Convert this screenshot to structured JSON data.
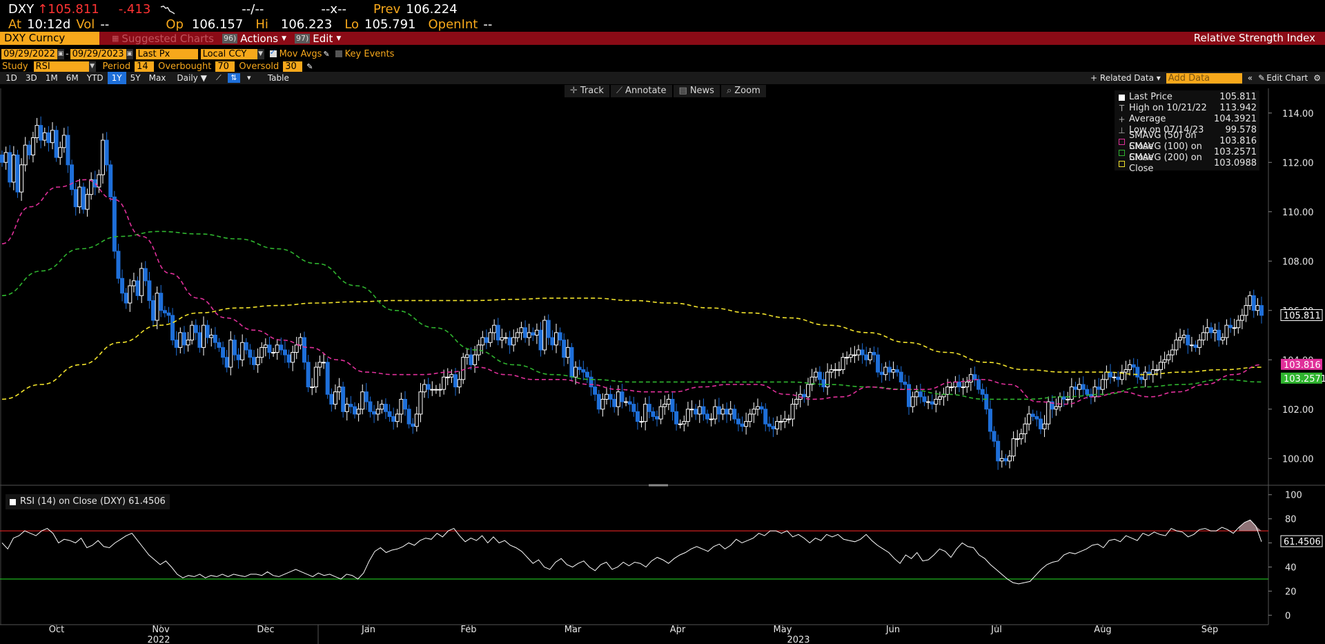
{
  "quote": {
    "ticker": "DXY",
    "arrow": "↑",
    "last": "105.811",
    "change": "-.413",
    "dash1": "--/--",
    "dash2": "--x--",
    "prev_label": "Prev",
    "prev": "106.224",
    "at_label": "At",
    "time": "10:12d",
    "vol_label": "Vol",
    "vol": "--",
    "op_label": "Op",
    "op": "106.157",
    "hi_label": "Hi",
    "hi": "106.223",
    "lo_label": "Lo",
    "lo": "105.791",
    "openint_label": "OpenInt",
    "openint": "--"
  },
  "titlebar": {
    "security": "DXY Curncy",
    "suggested": "Suggested Charts",
    "actions_num": "96)",
    "actions": "Actions",
    "edit_num": "97)",
    "edit": "Edit",
    "title": "Relative Strength Index"
  },
  "params": {
    "start_date": "09/29/2022",
    "end_date": "09/29/2023",
    "field": "Last Px",
    "currency": "Local CCY",
    "mov_avgs": "Mov Avgs",
    "key_events": "Key Events",
    "study_label": "Study",
    "study": "RSI",
    "period_label": "Period",
    "period": "14",
    "overbought_label": "Overbought",
    "overbought": "70",
    "oversold_label": "Oversold",
    "oversold": "30"
  },
  "tabs": [
    "1D",
    "3D",
    "1M",
    "6M",
    "YTD",
    "1Y",
    "5Y",
    "Max"
  ],
  "active_tab": "1Y",
  "frequency": "Daily ▼",
  "table_label": "Table",
  "right_tools": {
    "related": "+ Related Data ▾",
    "add_data": "Add Data",
    "edit_chart": "Edit Chart"
  },
  "tools": [
    {
      "icon": "✛",
      "label": "Track"
    },
    {
      "icon": "⟋",
      "label": "Annotate"
    },
    {
      "icon": "▤",
      "label": "News"
    },
    {
      "icon": "⌕",
      "label": "Zoom"
    }
  ],
  "legend": [
    {
      "marker": "box",
      "color": "#ffffff",
      "label": "Last Price",
      "value": "105.811"
    },
    {
      "marker": "T",
      "color": "#aaaaaa",
      "label": "High on 10/21/22",
      "value": "113.942"
    },
    {
      "marker": "+",
      "color": "#aaaaaa",
      "label": "Average",
      "value": "104.3921"
    },
    {
      "marker": "⊥",
      "color": "#aaaaaa",
      "label": "Low on 07/14/23",
      "value": "99.578"
    },
    {
      "marker": "dbox",
      "color": "#e0309a",
      "label": "SMAVG (50)  on Close",
      "value": "103.816"
    },
    {
      "marker": "dbox",
      "color": "#2fb52f",
      "label": "SMAVG (100)  on Close",
      "value": "103.2571"
    },
    {
      "marker": "dbox",
      "color": "#f2e32b",
      "label": "SMAVG (200)  on Close",
      "value": "103.0988"
    }
  ],
  "rsi_legend": "RSI (14)  on Close (DXY) 61.4506",
  "y_price_ticks": [
    "114.00",
    "112.00",
    "110.00",
    "108.00",
    "106.00",
    "104.00",
    "102.00",
    "100.00"
  ],
  "y_rsi_ticks": [
    "100",
    "80",
    "60",
    "40",
    "20",
    "0"
  ],
  "x_months": [
    "Oct",
    "Nov",
    "Dec",
    "Jan",
    "Feb",
    "Mar",
    "Apr",
    "May",
    "Jun",
    "Jul",
    "Aug",
    "Sep"
  ],
  "x_years": [
    "2022",
    "2023"
  ],
  "price_badges": [
    {
      "value": "105.811",
      "bg": "#ffffff",
      "fg": "#000000"
    },
    {
      "value": "103.816",
      "bg": "#e0309a",
      "fg": "#ffffff"
    },
    {
      "value": "103.2571",
      "bg": "#2fb52f",
      "fg": "#ffffff"
    }
  ],
  "rsi_badge": "61.4506",
  "colors": {
    "up": "#ffffff",
    "down": "#1e6fd9",
    "sma50": "#e0309a",
    "sma100": "#2fb52f",
    "sma200": "#f2e32b",
    "overbought_line": "#cc1f1f",
    "oversold_line": "#1fb41f",
    "accent": "#f7a81b",
    "titlebar": "#8b0b16"
  },
  "chart_data": {
    "type": "line",
    "title": "Relative Strength Index",
    "price_ylim": [
      99,
      115
    ],
    "rsi_ylim": [
      -5,
      105
    ],
    "x_range": [
      "09/29/2022",
      "09/29/2023"
    ],
    "rsi_levels": {
      "overbought": 70,
      "oversold": 30
    },
    "candle_close": [
      112.0,
      112.4,
      111.2,
      112.3,
      110.8,
      111.9,
      112.7,
      112.3,
      113.0,
      113.5,
      112.9,
      113.2,
      112.8,
      113.3,
      112.2,
      112.6,
      113.1,
      111.9,
      110.9,
      110.2,
      111.0,
      110.1,
      110.7,
      111.3,
      111.0,
      111.5,
      112.9,
      111.9,
      110.6,
      108.4,
      107.3,
      106.7,
      106.3,
      107.0,
      107.2,
      106.6,
      107.7,
      107.2,
      106.4,
      105.6,
      106.7,
      106.0,
      105.9,
      105.8,
      104.8,
      104.5,
      105.1,
      104.6,
      104.8,
      105.4,
      105.1,
      104.5,
      105.4,
      104.9,
      105.0,
      104.7,
      104.5,
      104.1,
      103.7,
      104.8,
      104.2,
      104.0,
      104.7,
      104.4,
      104.1,
      103.8,
      104.1,
      104.5,
      104.6,
      104.3,
      104.3,
      104.6,
      104.4,
      104.2,
      103.9,
      104.3,
      104.6,
      104.9,
      103.9,
      102.9,
      102.9,
      103.7,
      103.9,
      103.9,
      102.6,
      102.2,
      102.7,
      102.9,
      101.9,
      102.2,
      102.1,
      101.8,
      102.0,
      102.7,
      102.3,
      101.9,
      101.8,
      102.0,
      102.2,
      101.9,
      101.7,
      101.5,
      101.8,
      102.4,
      102.0,
      101.4,
      101.3,
      101.8,
      102.7,
      103.0,
      102.8,
      102.8,
      102.8,
      102.8,
      103.3,
      103.3,
      103.4,
      102.9,
      103.2,
      104.1,
      104.2,
      103.8,
      104.2,
      104.6,
      104.9,
      104.7,
      105.1,
      105.4,
      104.8,
      104.9,
      104.9,
      104.6,
      104.9,
      105.1,
      105.3,
      104.9,
      105.1,
      105.0,
      105.2,
      104.4,
      105.6,
      104.9,
      104.6,
      105.1,
      104.8,
      104.1,
      104.5,
      103.3,
      103.7,
      103.6,
      103.5,
      103.3,
      102.9,
      102.6,
      102.0,
      102.4,
      102.6,
      102.4,
      102.1,
      102.7,
      102.3,
      102.3,
      102.2,
      101.9,
      101.5,
      101.5,
      102.2,
      101.9,
      101.7,
      101.6,
      102.1,
      102.2,
      102.4,
      101.9,
      101.4,
      101.4,
      101.5,
      102.0,
      102.0,
      101.8,
      102.1,
      101.8,
      101.6,
      101.6,
      102.1,
      101.8,
      102.0,
      101.8,
      102.0,
      101.6,
      101.4,
      101.3,
      101.5,
      101.8,
      102.0,
      102.1,
      102.0,
      101.4,
      101.3,
      101.2,
      101.5,
      101.5,
      101.6,
      101.6,
      102.2,
      102.4,
      102.6,
      102.5,
      103.0,
      103.3,
      103.5,
      103.2,
      102.9,
      103.5,
      103.6,
      103.6,
      103.6,
      104.1,
      104.1,
      104.2,
      104.2,
      104.4,
      104.2,
      104.0,
      104.3,
      104.2,
      103.5,
      103.4,
      103.7,
      103.5,
      103.6,
      103.5,
      103.1,
      103.0,
      102.1,
      102.5,
      102.7,
      102.5,
      102.3,
      102.3,
      102.2,
      102.4,
      102.5,
      102.6,
      102.9,
      102.9,
      103.1,
      102.9,
      102.9,
      103.1,
      103.4,
      103.2,
      102.8,
      102.6,
      102.0,
      101.1,
      100.7,
      99.9,
      100.0,
      99.9,
      100.1,
      100.8,
      100.8,
      101.0,
      101.4,
      101.8,
      101.7,
      101.6,
      101.2,
      101.4,
      102.3,
      102.0,
      102.1,
      102.5,
      102.4,
      102.4,
      102.9,
      102.8,
      103.0,
      102.8,
      102.6,
      102.5,
      102.9,
      102.8,
      103.2,
      103.5,
      103.3,
      103.3,
      103.2,
      103.5,
      103.6,
      103.8,
      103.7,
      103.3,
      103.2,
      103.5,
      103.4,
      103.6,
      103.6,
      103.9,
      104.0,
      104.2,
      104.4,
      104.8,
      104.9,
      105.0,
      104.6,
      104.6,
      104.5,
      104.8,
      105.1,
      105.3,
      105.1,
      105.2,
      104.8,
      104.9,
      105.4,
      105.3,
      105.3,
      105.6,
      105.8,
      106.2,
      106.6,
      106.0,
      106.2,
      105.8
    ],
    "sma50": [
      108.7,
      110.2,
      111.0,
      111.3,
      110.5,
      109.0,
      107.5,
      106.5,
      105.7,
      105.2,
      104.8,
      104.5,
      104.0,
      103.5,
      103.4,
      103.4,
      103.5,
      103.7,
      103.4,
      103.2,
      103.2,
      103.0,
      102.8,
      102.7,
      102.7,
      102.9,
      103.0,
      103.0,
      102.6,
      102.4,
      102.5,
      102.9,
      102.8,
      102.8,
      103.1,
      103.2,
      103.0,
      102.3,
      102.2,
      102.5,
      102.7,
      102.5,
      102.7,
      103.0,
      103.4,
      103.8
    ],
    "sma100": [
      106.6,
      107.6,
      108.5,
      109.0,
      109.2,
      109.1,
      108.9,
      108.5,
      107.9,
      107.0,
      106.0,
      105.3,
      104.4,
      103.8,
      103.4,
      103.2,
      103.1,
      103.1,
      103.1,
      103.1,
      103.1,
      103.0,
      102.9,
      102.8,
      102.6,
      102.4,
      102.4,
      102.5,
      102.6,
      102.9,
      103.0,
      103.2,
      103.1
    ],
    "sma200": [
      102.4,
      103.0,
      103.8,
      104.7,
      105.4,
      105.9,
      106.1,
      106.2,
      106.3,
      106.35,
      106.4,
      106.4,
      106.4,
      106.45,
      106.5,
      106.5,
      106.4,
      106.3,
      106.1,
      105.9,
      105.7,
      105.4,
      105.1,
      104.7,
      104.3,
      103.9,
      103.6,
      103.5,
      103.5,
      103.4,
      103.5,
      103.6,
      103.7
    ],
    "rsi": [
      60,
      55,
      64,
      66,
      70,
      68,
      66,
      70,
      72,
      68,
      60,
      63,
      62,
      60,
      64,
      56,
      58,
      62,
      57,
      56,
      60,
      63,
      66,
      68,
      62,
      56,
      50,
      46,
      42,
      45,
      40,
      34,
      31,
      33,
      32,
      34,
      31,
      33,
      32,
      34,
      32,
      34,
      33,
      32,
      34,
      34,
      33,
      36,
      33,
      32,
      34,
      36,
      38,
      36,
      34,
      32,
      35,
      33,
      34,
      32,
      30,
      34,
      33,
      30,
      35,
      45,
      53,
      56,
      52,
      54,
      55,
      57,
      60,
      58,
      62,
      64,
      63,
      68,
      65,
      70,
      72,
      66,
      61,
      64,
      62,
      66,
      60,
      65,
      60,
      62,
      58,
      56,
      53,
      48,
      43,
      46,
      40,
      38,
      44,
      47,
      42,
      40,
      43,
      45,
      40,
      37,
      42,
      44,
      38,
      40,
      44,
      41,
      44,
      43,
      40,
      45,
      48,
      46,
      43,
      47,
      50,
      52,
      55,
      57,
      55,
      53,
      57,
      59,
      55,
      58,
      63,
      60,
      62,
      64,
      68,
      66,
      70,
      70,
      68,
      70,
      65,
      67,
      64,
      60,
      64,
      62,
      67,
      65,
      67,
      63,
      62,
      61,
      63,
      67,
      62,
      58,
      55,
      52,
      47,
      43,
      50,
      47,
      52,
      45,
      46,
      50,
      55,
      53,
      48,
      55,
      60,
      57,
      56,
      50,
      47,
      42,
      38,
      34,
      30,
      27,
      26,
      27,
      28,
      33,
      38,
      42,
      44,
      45,
      50,
      52,
      51,
      53,
      55,
      58,
      59,
      56,
      62,
      63,
      61,
      66,
      64,
      62,
      68,
      66,
      69,
      67,
      66,
      72,
      70,
      69,
      65,
      67,
      71,
      72,
      70,
      70,
      73,
      71,
      68,
      73,
      77,
      79,
      74,
      61
    ]
  }
}
